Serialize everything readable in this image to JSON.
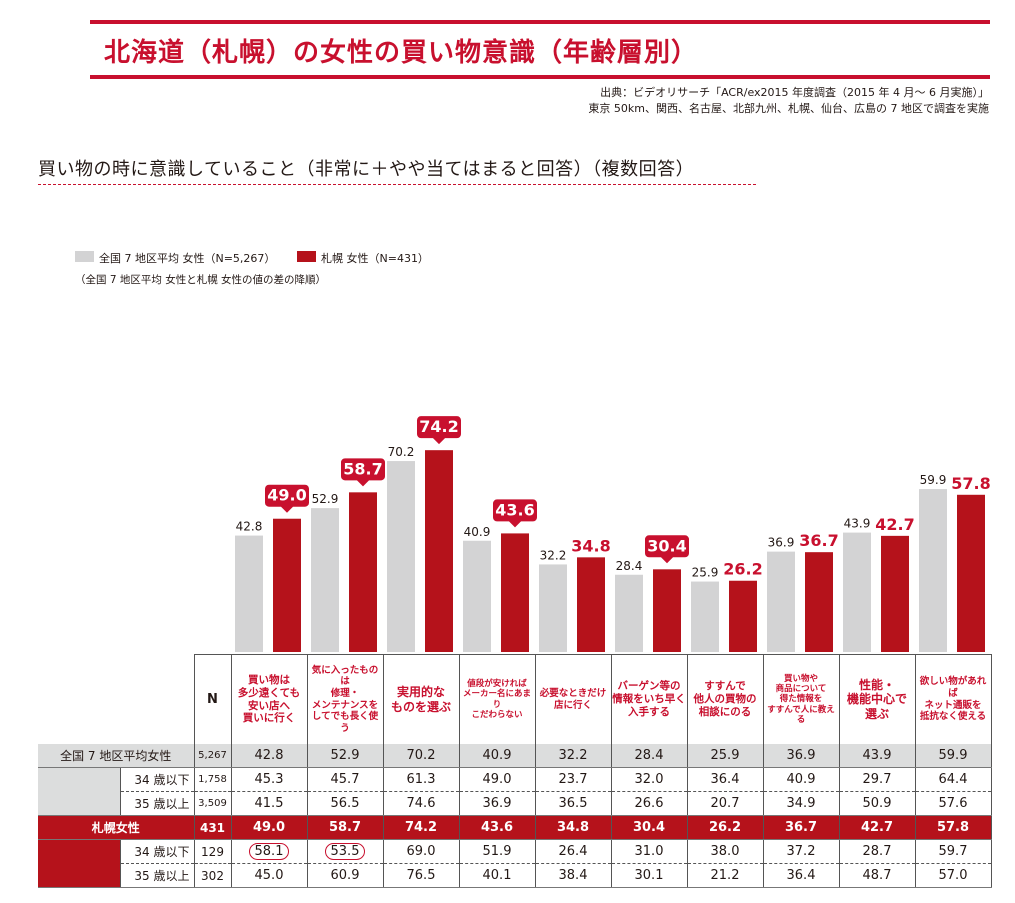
{
  "header": {
    "title": "北海道（札幌）の女性の買い物意識（年齢層別）",
    "source_line1": "出典：ビデオリサーチ「ACR/ex2015 年度調査（2015 年 4 月〜 6 月実施）」",
    "source_line2": "東京 50km、関西、名古屋、北部九州、札幌、仙台、広島の 7 地区で調査を実施"
  },
  "subtitle": "買い物の時に意識していること（非常に＋やや当てはまると回答）（複数回答）",
  "legend": {
    "national": "全国 7 地区平均 女性（N=5,267）",
    "sapporo": "札幌 女性（N=431）",
    "note": "（全国 7 地区平均 女性と札幌 女性の値の差の降順）"
  },
  "colors": {
    "national": "#d3d3d4",
    "sapporo": "#b5121b",
    "accent": "#c8102e"
  },
  "chart_data": {
    "type": "bar",
    "categories": [
      "買い物は多少遠くても安い店へ買いに行く",
      "気に入ったものは修理・メンテナンスをしてでも長く使う",
      "実用的なものを選ぶ",
      "値段が安ければメーカー名にあまりこだわらない",
      "必要なときだけ店に行く",
      "バーゲン等の情報をいち早く入手する",
      "すすんで他人の買物の相談にのる",
      "買い物や商品について得た情報をすすんで人に教える",
      "性能・機能中心で選ぶ",
      "欲しい物があればネット通販を抵抗なく使える"
    ],
    "series": [
      {
        "name": "全国 7 地区平均 女性（N=5,267）",
        "values": [
          42.8,
          52.9,
          70.2,
          40.9,
          32.2,
          28.4,
          25.9,
          36.9,
          43.9,
          59.9
        ]
      },
      {
        "name": "札幌 女性（N=431）",
        "values": [
          49.0,
          58.7,
          74.2,
          43.6,
          34.8,
          30.4,
          26.2,
          36.7,
          42.7,
          57.8
        ]
      }
    ],
    "highlighted_sapporo": [
      true,
      true,
      true,
      true,
      false,
      true,
      false,
      false,
      false,
      false
    ],
    "ylim": [
      0,
      80
    ]
  },
  "table": {
    "n_header": "N",
    "col_headers": [
      [
        "買い物は",
        "多少遠くても",
        "安い店へ",
        "買いに行く"
      ],
      [
        "気に入ったものは",
        "修理・",
        "メンテナンスを",
        "してでも長く使う"
      ],
      [
        "実用的な",
        "ものを選ぶ"
      ],
      [
        "値段が安ければ",
        "メーカー名にあまり",
        "こだわらない"
      ],
      [
        "必要なときだけ",
        "店に行く"
      ],
      [
        "バーゲン等の",
        "情報をいち早く",
        "入手する"
      ],
      [
        "すすんで",
        "他人の買物の",
        "相談にのる"
      ],
      [
        "買い物や",
        "商品について",
        "得た情報を",
        "すすんで人に教える"
      ],
      [
        "性能・",
        "機能中心で",
        "選ぶ"
      ],
      [
        "欲しい物があれば",
        "ネット通販を",
        "抵抗なく使える"
      ]
    ],
    "rows": [
      {
        "label": "全国 7 地区平均女性",
        "n": "5,267",
        "values": [
          "42.8",
          "52.9",
          "70.2",
          "40.9",
          "32.2",
          "28.4",
          "25.9",
          "36.9",
          "43.9",
          "59.9"
        ]
      },
      {
        "label": "34 歳以下",
        "n": "1,758",
        "values": [
          "45.3",
          "45.7",
          "61.3",
          "49.0",
          "23.7",
          "32.0",
          "36.4",
          "40.9",
          "29.7",
          "64.4"
        ]
      },
      {
        "label": "35 歳以上",
        "n": "3,509",
        "values": [
          "41.5",
          "56.5",
          "74.6",
          "36.9",
          "36.5",
          "26.6",
          "20.7",
          "34.9",
          "50.9",
          "57.6"
        ]
      },
      {
        "label": "札幌女性",
        "n": "431",
        "values": [
          "49.0",
          "58.7",
          "74.2",
          "43.6",
          "34.8",
          "30.4",
          "26.2",
          "36.7",
          "42.7",
          "57.8"
        ]
      },
      {
        "label": "34 歳以下",
        "n": "129",
        "values": [
          "58.1",
          "53.5",
          "69.0",
          "51.9",
          "26.4",
          "31.0",
          "38.0",
          "37.2",
          "28.7",
          "59.7"
        ]
      },
      {
        "label": "35 歳以上",
        "n": "302",
        "values": [
          "45.0",
          "60.9",
          "76.5",
          "40.1",
          "38.4",
          "30.1",
          "21.2",
          "36.4",
          "48.7",
          "57.0"
        ]
      }
    ],
    "circled_cells": [
      [
        4,
        0
      ],
      [
        4,
        1
      ]
    ]
  }
}
